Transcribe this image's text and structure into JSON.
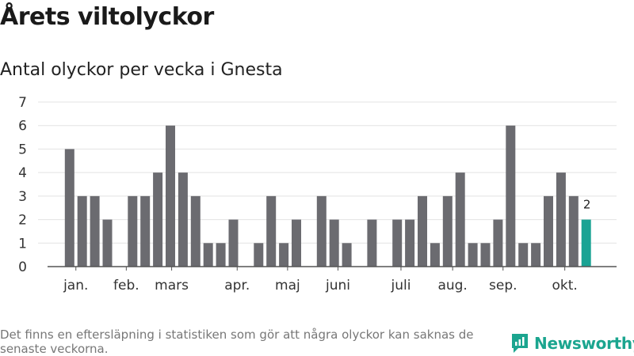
{
  "title": "Årets viltolyckor",
  "subtitle": "Antal olyckor per vecka i Gnesta",
  "footer_note": "Det finns en eftersläpning i statistiken som gör att några olyckor kan saknas de senaste veckorna.",
  "logo_text": "Newsworthy",
  "colors": {
    "bar": "#6b6b70",
    "highlight": "#1aa394",
    "grid": "#e3e3e3",
    "axis": "#555555",
    "text": "#333333"
  },
  "chart_data": {
    "type": "bar",
    "title": "",
    "xlabel": "",
    "ylabel": "",
    "ylim": [
      0,
      7
    ],
    "yticks": [
      0,
      1,
      2,
      3,
      4,
      5,
      6,
      7
    ],
    "grid": true,
    "weeks": [
      1,
      2,
      3,
      4,
      5,
      6,
      7,
      8,
      9,
      10,
      11,
      12,
      13,
      14,
      15,
      16,
      17,
      18,
      19,
      20,
      21,
      22,
      23,
      24,
      25,
      26,
      27,
      28,
      29,
      30,
      31,
      32,
      33,
      34,
      35,
      36,
      37,
      38,
      39,
      40,
      41,
      42
    ],
    "values": [
      5,
      3,
      3,
      2,
      0,
      3,
      3,
      4,
      6,
      4,
      3,
      1,
      1,
      2,
      0,
      1,
      3,
      1,
      2,
      0,
      3,
      2,
      1,
      0,
      2,
      0,
      2,
      2,
      3,
      1,
      3,
      4,
      1,
      1,
      2,
      6,
      1,
      1,
      3,
      4,
      3,
      2
    ],
    "highlight_index": 41,
    "highlight_label": "2",
    "month_labels": [
      {
        "label": "jan.",
        "week": 1.5
      },
      {
        "label": "feb.",
        "week": 5.5
      },
      {
        "label": "mars",
        "week": 9.1
      },
      {
        "label": "apr.",
        "week": 14.3
      },
      {
        "label": "maj",
        "week": 18.3
      },
      {
        "label": "juni",
        "week": 22.3
      },
      {
        "label": "juli",
        "week": 27.3
      },
      {
        "label": "aug.",
        "week": 31.4
      },
      {
        "label": "sep.",
        "week": 35.4
      },
      {
        "label": "okt.",
        "week": 40.3
      }
    ]
  }
}
